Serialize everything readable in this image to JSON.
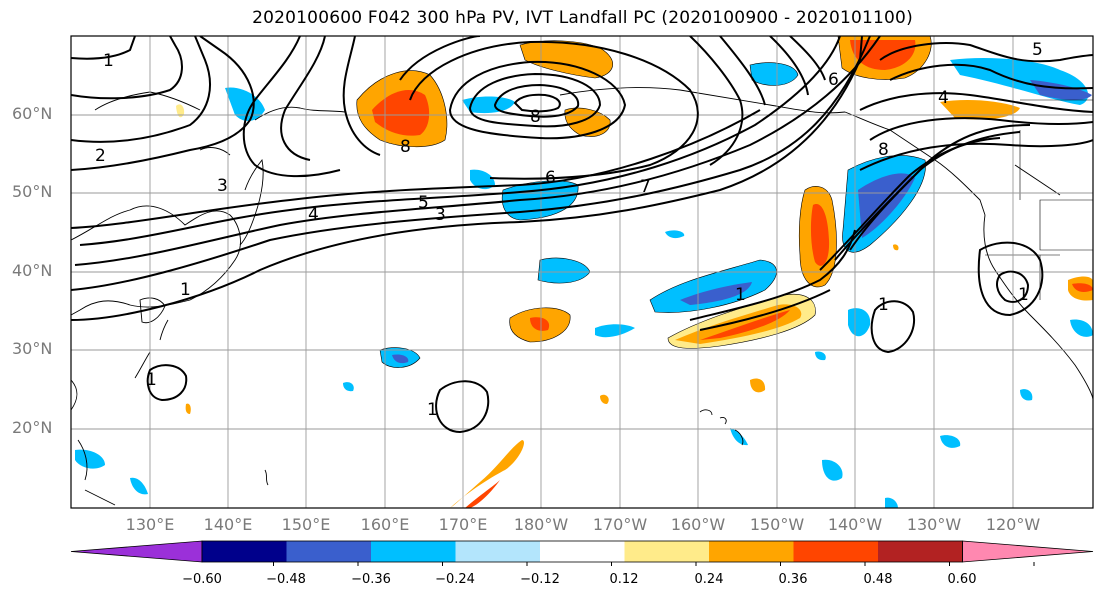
{
  "title": "2020100600 F042 300 hPa PV, IVT Landfall PC (2020100900 - 2020101100)",
  "lat_labels": [
    "60°N",
    "50°N",
    "40°N",
    "30°N",
    "20°N"
  ],
  "lon_labels": [
    "130°E",
    "140°E",
    "150°E",
    "160°E",
    "170°E",
    "180°W",
    "170°W",
    "160°W",
    "150°W",
    "140°W",
    "130°W",
    "120°W"
  ],
  "contour_labels": [
    "1",
    "2",
    "3",
    "4",
    "5",
    "6",
    "7",
    "8"
  ],
  "colorbar": {
    "ticks": [
      "−0.60",
      "−0.48",
      "−0.36",
      "−0.24",
      "−0.12",
      "0.12",
      "0.24",
      "0.36",
      "0.48",
      "0.60"
    ],
    "colors": [
      "#9b30d9",
      "#00008b",
      "#3a5fcd",
      "#00bfff",
      "#b3e5fc",
      "#ffffff",
      "#ffeb8a",
      "#ffa500",
      "#ff4500",
      "#b22222",
      "#ff88b0"
    ]
  }
}
